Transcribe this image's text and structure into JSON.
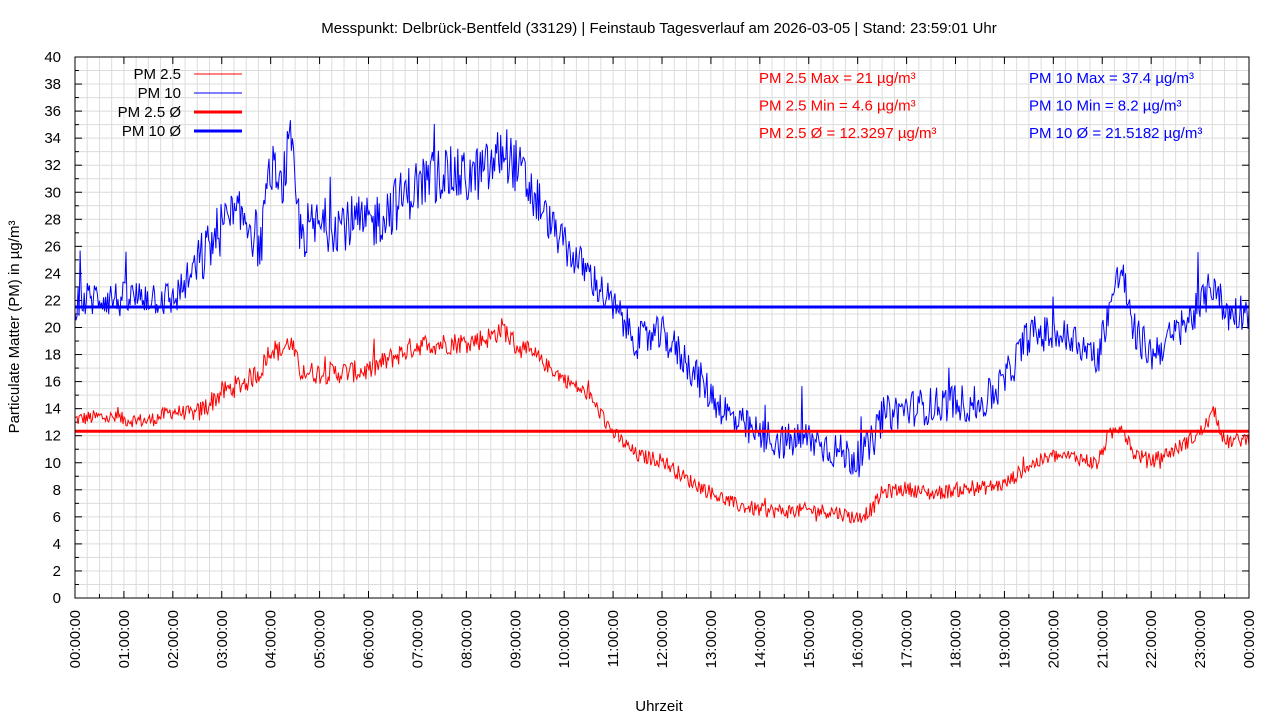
{
  "chart_data": {
    "type": "line",
    "title": "Messpunkt: Delbrück-Bentfeld (33129) | Feinstaub Tagesverlauf am 2026-03-05 | Stand: 23:59:01 Uhr",
    "xlabel": "Uhrzeit",
    "ylabel": "Particulate Matter (PM) in µg/m³",
    "xlim": [
      "00:00:00",
      "24:00:00"
    ],
    "ylim": [
      0,
      40
    ],
    "grid": true,
    "legend_position": "top-left",
    "x_tick_labels": [
      "00:00:00",
      "01:00:00",
      "02:00:00",
      "03:00:00",
      "04:00:00",
      "05:00:00",
      "06:00:00",
      "07:00:00",
      "08:00:00",
      "09:00:00",
      "10:00:00",
      "11:00:00",
      "12:00:00",
      "13:00:00",
      "14:00:00",
      "15:00:00",
      "16:00:00",
      "17:00:00",
      "18:00:00",
      "19:00:00",
      "20:00:00",
      "21:00:00",
      "22:00:00",
      "23:00:00",
      "00:00:00"
    ],
    "y_tick_labels": [
      "0",
      "2",
      "4",
      "6",
      "8",
      "10",
      "12",
      "14",
      "16",
      "18",
      "20",
      "22",
      "24",
      "26",
      "28",
      "30",
      "32",
      "34",
      "36",
      "38",
      "40"
    ],
    "series": [
      {
        "name": "PM 2.5",
        "color": "#ff0000",
        "x_hours": [
          0,
          0.5,
          1,
          1.5,
          2,
          2.5,
          3,
          3.5,
          3.8,
          4,
          4.2,
          4.4,
          4.6,
          5,
          5.5,
          6,
          6.5,
          7,
          7.5,
          8,
          8.5,
          8.75,
          9,
          9.5,
          10,
          10.5,
          11,
          11.5,
          12,
          12.5,
          13,
          13.5,
          14,
          14.5,
          15,
          15.5,
          16,
          16.3,
          16.5,
          17,
          17.5,
          18,
          18.5,
          19,
          19.5,
          20,
          20.5,
          20.9,
          21.1,
          21.4,
          21.6,
          22,
          22.5,
          23,
          23.3,
          23.5,
          24
        ],
        "values": [
          13.2,
          13.4,
          13.2,
          13.1,
          13.8,
          13.6,
          15.2,
          16.0,
          16.8,
          18.5,
          18.2,
          19.0,
          16.8,
          16.6,
          16.7,
          16.8,
          17.8,
          18.7,
          18.8,
          18.9,
          19.3,
          20.0,
          18.7,
          17.6,
          16.2,
          15.0,
          12.2,
          10.5,
          10.2,
          8.8,
          7.8,
          6.9,
          6.5,
          6.4,
          6.5,
          6.4,
          5.9,
          6.6,
          7.8,
          8.1,
          7.7,
          8.0,
          8.1,
          8.4,
          9.8,
          10.5,
          10.4,
          9.9,
          11.8,
          12.9,
          10.8,
          10.1,
          11.0,
          12.2,
          13.8,
          11.5,
          11.8
        ]
      },
      {
        "name": "PM 10",
        "color": "#0000ff",
        "x_hours": [
          0,
          0.5,
          1,
          1.5,
          2,
          2.5,
          3,
          3.5,
          3.8,
          4,
          4.2,
          4.4,
          4.6,
          5,
          5.5,
          6,
          6.5,
          7,
          7.5,
          8,
          8.5,
          8.75,
          9,
          9.5,
          10,
          10.5,
          11,
          11.5,
          12,
          12.5,
          13,
          13.5,
          14,
          14.5,
          15,
          15.5,
          16,
          16.3,
          16.5,
          17,
          17.5,
          18,
          18.5,
          19,
          19.5,
          20,
          20.5,
          20.9,
          21.1,
          21.4,
          21.6,
          22,
          22.5,
          23,
          23.3,
          23.5,
          24
        ],
        "values": [
          21.8,
          22.3,
          22.0,
          22.4,
          22.0,
          24.5,
          27.5,
          28.2,
          26.0,
          32.0,
          30.0,
          33.5,
          27.0,
          27.5,
          27.8,
          27.5,
          29.0,
          30.5,
          31.5,
          31.0,
          31.8,
          33.2,
          32.0,
          29.0,
          26.0,
          24.0,
          21.5,
          19.0,
          19.5,
          17.5,
          15.0,
          13.0,
          12.0,
          11.5,
          11.8,
          11.0,
          10.2,
          11.5,
          13.5,
          14.0,
          14.2,
          14.5,
          14.2,
          16.0,
          19.5,
          19.5,
          19.0,
          17.5,
          21.0,
          24.5,
          20.0,
          18.0,
          19.5,
          21.5,
          23.5,
          21.0,
          21.3
        ]
      },
      {
        "name": "PM 2.5 Ø",
        "color": "#ff0000",
        "constant": 12.3297
      },
      {
        "name": "PM 10 Ø",
        "color": "#0000ff",
        "constant": 21.5182
      }
    ],
    "annotations": {
      "pm25": [
        "PM 2.5 Max = 21 µg/m³",
        "PM 2.5 Min = 4.6 µg/m³",
        "PM 2.5 Ø = 12.3297 µg/m³"
      ],
      "pm10": [
        "PM 10 Max = 37.4 µg/m³",
        "PM 10 Min = 8.2 µg/m³",
        "PM 10 Ø = 21.5182 µg/m³"
      ]
    }
  }
}
